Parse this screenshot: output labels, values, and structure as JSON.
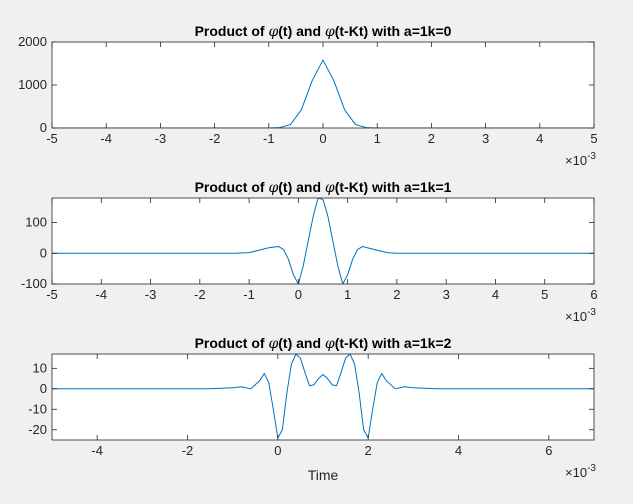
{
  "chart_data": [
    {
      "type": "line",
      "title": {
        "pre": "Product of ",
        "phi1": "φ",
        "mid": "(t) and ",
        "phi2": "φ",
        "post": "(t-Kt) with a=1k=0"
      },
      "xlabel": "",
      "ylabel": "",
      "x_multiplier": "×10",
      "x_exponent": "-3",
      "xlim": [
        -0.005,
        0.005
      ],
      "ylim": [
        0,
        2000
      ],
      "xticks": [
        -0.005,
        -0.004,
        -0.003,
        -0.002,
        -0.001,
        0,
        0.001,
        0.002,
        0.003,
        0.004,
        0.005
      ],
      "xtick_labels": [
        "-5",
        "-4",
        "-3",
        "-2",
        "-1",
        "0",
        "1",
        "2",
        "3",
        "4",
        "5"
      ],
      "yticks": [
        0,
        1000,
        2000
      ],
      "ytick_labels": [
        "0",
        "1000",
        "2000"
      ],
      "grid": false,
      "color": "#0072bd",
      "series": [
        {
          "x": [
            -0.005,
            -0.001,
            -0.0008,
            -0.0006,
            -0.0004,
            -0.0002,
            0,
            0.0002,
            0.0004,
            0.0006,
            0.0008,
            0.001,
            0.005
          ],
          "y": [
            0,
            0,
            10,
            80,
            420,
            1100,
            1580,
            1100,
            420,
            80,
            10,
            0,
            0
          ]
        }
      ]
    },
    {
      "type": "line",
      "title": {
        "pre": "Product of ",
        "phi1": "φ",
        "mid": "(t) and ",
        "phi2": "φ",
        "post": "(t-Kt) with a=1k=1"
      },
      "xlabel": "",
      "ylabel": "",
      "x_multiplier": "×10",
      "x_exponent": "-3",
      "xlim": [
        -0.005,
        0.006
      ],
      "ylim": [
        -100,
        180
      ],
      "xticks": [
        -0.005,
        -0.004,
        -0.003,
        -0.002,
        -0.001,
        0,
        0.001,
        0.002,
        0.003,
        0.004,
        0.005,
        0.006
      ],
      "xtick_labels": [
        "-5",
        "-4",
        "-3",
        "-2",
        "-1",
        "0",
        "1",
        "2",
        "3",
        "4",
        "5",
        "6"
      ],
      "yticks": [
        -100,
        0,
        100
      ],
      "ytick_labels": [
        "-100",
        "0",
        "100"
      ],
      "grid": false,
      "color": "#0072bd",
      "series": [
        {
          "x": [
            -0.005,
            -0.0013,
            -0.001,
            -0.0008,
            -0.0006,
            -0.0004,
            -0.0003,
            -0.0002,
            -0.0001,
            0,
            0.0001,
            0.0002,
            0.0003,
            0.0004,
            0.0005,
            0.0006,
            0.0007,
            0.0008,
            0.0009,
            0.001,
            0.0011,
            0.0012,
            0.0013,
            0.0014,
            0.0016,
            0.0018,
            0.002,
            0.0023,
            0.006
          ],
          "y": [
            0,
            0,
            2,
            10,
            18,
            22,
            12,
            -20,
            -70,
            -100,
            -40,
            40,
            120,
            180,
            175,
            120,
            40,
            -40,
            -100,
            -70,
            -20,
            12,
            22,
            18,
            10,
            2,
            0,
            0,
            0
          ]
        }
      ]
    },
    {
      "type": "line",
      "title": {
        "pre": "Product of ",
        "phi1": "φ",
        "mid": "(t) and ",
        "phi2": "φ",
        "post": "(t-Kt) with a=1k=2"
      },
      "xlabel": "Time",
      "ylabel": "",
      "x_multiplier": "×10",
      "x_exponent": "-3",
      "xlim": [
        -0.005,
        0.007
      ],
      "ylim": [
        -25,
        17
      ],
      "xticks": [
        -0.004,
        -0.002,
        0,
        0.002,
        0.004,
        0.006
      ],
      "xtick_labels": [
        "-4",
        "-2",
        "0",
        "2",
        "4",
        "6"
      ],
      "yticks": [
        -20,
        -10,
        0,
        10
      ],
      "ytick_labels": [
        "-20",
        "-10",
        "0",
        "10"
      ],
      "grid": false,
      "color": "#0072bd",
      "series": [
        {
          "x": [
            -0.005,
            -0.0015,
            -0.001,
            -0.0008,
            -0.0006,
            -0.0004,
            -0.0003,
            -0.0002,
            -0.0001,
            0,
            0.0001,
            0.0002,
            0.0003,
            0.0004,
            0.0005,
            0.0006,
            0.0007,
            0.0008,
            0.0009,
            0.001,
            0.0011,
            0.0012,
            0.0013,
            0.0014,
            0.0015,
            0.0016,
            0.0017,
            0.0018,
            0.0019,
            0.002,
            0.0021,
            0.0022,
            0.0023,
            0.0024,
            0.0026,
            0.0028,
            0.003,
            0.0035,
            0.007
          ],
          "y": [
            0,
            0,
            0.5,
            1,
            0,
            4,
            7.5,
            3,
            -10,
            -24,
            -20,
            -2,
            12,
            17,
            15,
            8,
            1.5,
            2,
            5,
            7,
            5,
            2,
            1.5,
            8,
            15,
            17,
            12,
            -2,
            -20,
            -24,
            -10,
            3,
            7.5,
            4,
            0,
            1,
            0.5,
            0,
            0
          ]
        }
      ]
    }
  ]
}
